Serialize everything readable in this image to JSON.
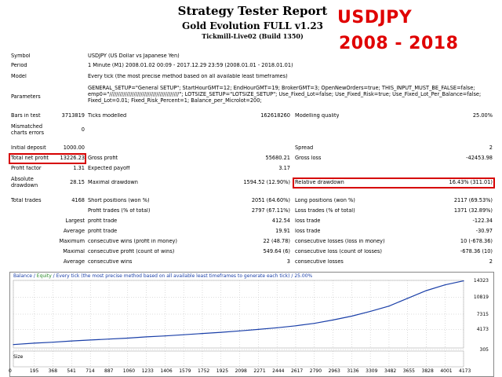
{
  "header": {
    "title": "Strategy Tester Report",
    "subtitle": "Gold Evolution FULL v1.23",
    "server": "Tickmill-Live02 (Build 1350)",
    "overlay_symbol": "USDJPY",
    "overlay_years": "2008 - 2018",
    "overlay_color": "#e00000"
  },
  "report": {
    "symbol_label": "Symbol",
    "symbol_value": "USDJPY (US Dollar vs Japanese Yen)",
    "period_label": "Period",
    "period_value": "1 Minute (M1) 2008.01.02 00:09 - 2017.12.29 23:59 (2008.01.01 - 2018.01.01)",
    "model_label": "Model",
    "model_value": "Every tick (the most precise method based on all available least timeframes)",
    "parameters_label": "Parameters",
    "parameters_value": "GENERAL_SETUP=\"General SETUP\"; StartHourGMT=12; EndHourGMT=19; BrokerGMT=3; OpenNewOrders=true; THIS_INPUT_MUST_BE_FALSE=false; emp0=\"////////////////////////////////////////\"; LOTSIZE_SETUP=\"LOTSIZE_SETUP\"; Use_Fixed_Lot=false; Use_Fixed_Risk=true; Use_Fixed_Lot_Per_Balance=false; Fixed_Lot=0.01; Fixed_Risk_Percent=1; Balance_per_Microlot=200;",
    "bars_label": "Bars in test",
    "bars_value": "3713819",
    "ticks_label": "Ticks modelled",
    "ticks_value": "162618260",
    "quality_label": "Modelling quality",
    "quality_value": "25.00%",
    "mismatched_label": "Mismatched charts errors",
    "mismatched_value": "0",
    "initial_label": "Initial deposit",
    "initial_value": "1000.00",
    "spread_label": "Spread",
    "spread_value": "2",
    "net_label": "Total net profit",
    "net_value": "13226.23",
    "gross_profit_label": "Gross profit",
    "gross_profit_value": "55680.21",
    "gross_loss_label": "Gross loss",
    "gross_loss_value": "-42453.98",
    "pf_label": "Profit factor",
    "pf_value": "1.31",
    "payoff_label": "Expected payoff",
    "payoff_value": "3.17",
    "abs_dd_label": "Absolute drawdown",
    "abs_dd_value": "28.15",
    "max_dd_label": "Maximal drawdown",
    "max_dd_value": "1594.52 (12.90%)",
    "rel_dd_label": "Relative drawdown",
    "rel_dd_value": "16.43% (311.01)",
    "trades_label": "Total trades",
    "trades_value": "4168",
    "short_label": "Short positions (won %)",
    "short_value": "2051 (64.60%)",
    "long_label": "Long positions (won %)",
    "long_value": "2117 (69.53%)",
    "profit_trades_label": "Profit trades (% of total)",
    "profit_trades_value": "2797 (67.11%)",
    "loss_trades_label": "Loss trades (% of total)",
    "loss_trades_value": "1371 (32.89%)",
    "largest_label": "Largest",
    "largest_profit_label": "profit trade",
    "largest_profit_value": "412.54",
    "largest_loss_label": "loss trade",
    "largest_loss_value": "-122.34",
    "average_label": "Average",
    "average_profit_label": "profit trade",
    "average_profit_value": "19.91",
    "average_loss_label": "loss trade",
    "average_loss_value": "-30.97",
    "maximum_label": "Maximum",
    "max_cons_wins_label": "consecutive wins (profit in money)",
    "max_cons_wins_value": "22 (48.78)",
    "max_cons_losses_label": "consecutive losses (loss in money)",
    "max_cons_losses_value": "10 (-678.36)",
    "maximal_label": "Maximal",
    "maximal_profit_label": "consecutive profit (count of wins)",
    "maximal_profit_value": "549.64 (6)",
    "maximal_loss_label": "consecutive loss (count of losses)",
    "maximal_loss_value": "-678.36 (10)",
    "average2_label": "Average",
    "avg_cons_wins_label": "consecutive wins",
    "avg_cons_wins_value": "3",
    "avg_cons_losses_label": "consecutive losses",
    "avg_cons_losses_value": "2",
    "highlight_color": "#d60000"
  },
  "chart_legend": {
    "balance": "Balance",
    "sep": " / ",
    "equity": "Equity",
    "rest": " / Every tick (the most precise method based on all available least timeframes to generate each tick) / 25.00%"
  },
  "size_label": "Size",
  "chart_data": {
    "type": "line",
    "title": "",
    "xlabel": "",
    "ylabel": "",
    "x_ticks": [
      "0",
      "195",
      "368",
      "541",
      "714",
      "887",
      "1060",
      "1233",
      "1406",
      "1579",
      "1752",
      "1925",
      "2098",
      "2271",
      "2444",
      "2617",
      "2790",
      "2963",
      "3136",
      "3309",
      "3482",
      "3655",
      "3828",
      "4001",
      "4173"
    ],
    "y_ticks": [
      "14323",
      "10819",
      "7315",
      "4173",
      "305"
    ],
    "xlim": [
      0,
      4173
    ],
    "ylim": [
      305,
      14323
    ],
    "grid": true,
    "series": [
      {
        "name": "Balance",
        "color": "#1a3fa8",
        "x": [
          0,
          195,
          368,
          541,
          714,
          887,
          1060,
          1233,
          1406,
          1579,
          1752,
          1925,
          2098,
          2271,
          2444,
          2617,
          2790,
          2963,
          3136,
          3309,
          3482,
          3655,
          3828,
          4001,
          4173
        ],
        "y": [
          1000,
          1300,
          1500,
          1750,
          1950,
          2150,
          2350,
          2600,
          2800,
          3050,
          3300,
          3550,
          3850,
          4150,
          4500,
          4900,
          5400,
          6100,
          6900,
          7900,
          9000,
          10600,
          12200,
          13400,
          14223
        ]
      }
    ]
  }
}
